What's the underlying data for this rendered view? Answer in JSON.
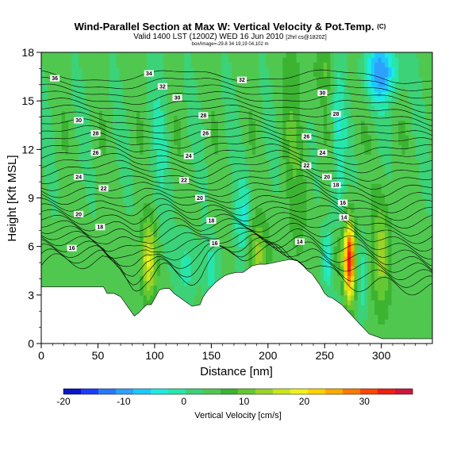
{
  "chart_data": {
    "type": "heatmap",
    "title": "Wind-Parallel Section at Max W: Vertical Velocity & Pot.Temp.",
    "title_suffix": "(C)",
    "subtitle": "Valid 1400 LST (1200Z) WED 16 Jun 2010",
    "subtitle_suffix": "[2hrl cs@1820Z]",
    "info_line": "box/Image=-29.8 34 19,19 04,102 m",
    "xlabel": "Distance [nm]",
    "ylabel": "Height [Kft MSL]",
    "xlim": [
      0,
      345
    ],
    "ylim": [
      0,
      18
    ],
    "x_ticks": [
      0,
      50,
      100,
      150,
      200,
      250,
      300
    ],
    "y_ticks": [
      0,
      3,
      6,
      9,
      12,
      15,
      18
    ],
    "grid": false,
    "colorbar": {
      "label": "Vertical Velocity [cm/s]",
      "ticks": [
        -20,
        -10,
        0,
        10,
        20,
        30
      ],
      "min": -20,
      "max": 38,
      "colors": [
        "#0a14c8",
        "#1e3cff",
        "#2878ff",
        "#2ea0ff",
        "#1ec8ff",
        "#1eebe0",
        "#28e6aa",
        "#3cd278",
        "#50c850",
        "#3cb432",
        "#64c832",
        "#9bd228",
        "#c8e61e",
        "#f0f01e",
        "#ffd200",
        "#ffaa00",
        "#ff7800",
        "#ff4600",
        "#f01e14",
        "#d2143c"
      ]
    },
    "terrain": [
      [
        0,
        3.5
      ],
      [
        55,
        3.5
      ],
      [
        58,
        3.1
      ],
      [
        64,
        3.1
      ],
      [
        67,
        3.0
      ],
      [
        70,
        2.9
      ],
      [
        73,
        2.6
      ],
      [
        76,
        2.3
      ],
      [
        79,
        2.0
      ],
      [
        82,
        1.7
      ],
      [
        86,
        1.9
      ],
      [
        90,
        2.2
      ],
      [
        93,
        2.4
      ],
      [
        97,
        2.4
      ],
      [
        101,
        2.9
      ],
      [
        104,
        3.3
      ],
      [
        108,
        3.4
      ],
      [
        113,
        3.4
      ],
      [
        117,
        3.1
      ],
      [
        121,
        2.9
      ],
      [
        125,
        2.7
      ],
      [
        129,
        2.5
      ],
      [
        133,
        2.3
      ],
      [
        140,
        2.4
      ],
      [
        143,
        2.9
      ],
      [
        147,
        3.3
      ],
      [
        150,
        3.5
      ],
      [
        154,
        3.8
      ],
      [
        158,
        4.0
      ],
      [
        162,
        4.2
      ],
      [
        166,
        4.3
      ],
      [
        172,
        4.4
      ],
      [
        178,
        4.4
      ],
      [
        182,
        4.6
      ],
      [
        186,
        4.8
      ],
      [
        192,
        4.9
      ],
      [
        198,
        4.9
      ],
      [
        205,
        5.0
      ],
      [
        212,
        5.1
      ],
      [
        220,
        5.2
      ],
      [
        226,
        5.1
      ],
      [
        231,
        4.8
      ],
      [
        235,
        4.5
      ],
      [
        239,
        4.3
      ],
      [
        242,
        4.0
      ],
      [
        246,
        3.6
      ],
      [
        250,
        3.1
      ],
      [
        253,
        2.9
      ],
      [
        257,
        2.8
      ],
      [
        261,
        2.6
      ],
      [
        265,
        2.4
      ],
      [
        269,
        2.1
      ],
      [
        273,
        1.8
      ],
      [
        277,
        1.5
      ],
      [
        281,
        1.2
      ],
      [
        285,
        0.9
      ],
      [
        289,
        0.6
      ],
      [
        293,
        0.5
      ],
      [
        297,
        0.4
      ],
      [
        301,
        0.3
      ],
      [
        345,
        0.3
      ]
    ],
    "theta_contours": [
      {
        "value": 14,
        "label_at": [
          228,
          6.3
        ]
      },
      {
        "value": 14,
        "label_at": [
          267,
          7.8
        ]
      },
      {
        "value": 16,
        "label_at": [
          27,
          5.9
        ]
      },
      {
        "value": 16,
        "label_at": [
          153,
          6.2
        ]
      },
      {
        "value": 16,
        "label_at": [
          266,
          8.7
        ]
      },
      {
        "value": 18,
        "label_at": [
          52,
          7.2
        ]
      },
      {
        "value": 18,
        "label_at": [
          150,
          7.6
        ]
      },
      {
        "value": 18,
        "label_at": [
          260,
          9.8
        ]
      },
      {
        "value": 20,
        "label_at": [
          33,
          8.0
        ]
      },
      {
        "value": 20,
        "label_at": [
          140,
          9.0
        ]
      },
      {
        "value": 20,
        "label_at": [
          252,
          10.3
        ]
      },
      {
        "value": 22,
        "label_at": [
          55,
          9.6
        ]
      },
      {
        "value": 22,
        "label_at": [
          126,
          10.1
        ]
      },
      {
        "value": 22,
        "label_at": [
          234,
          11.0
        ]
      },
      {
        "value": 24,
        "label_at": [
          33,
          10.3
        ]
      },
      {
        "value": 24,
        "label_at": [
          130,
          11.6
        ]
      },
      {
        "value": 24,
        "label_at": [
          248,
          11.8
        ]
      },
      {
        "value": 26,
        "label_at": [
          48,
          11.8
        ]
      },
      {
        "value": 26,
        "label_at": [
          145,
          13.0
        ]
      },
      {
        "value": 26,
        "label_at": [
          234,
          12.8
        ]
      },
      {
        "value": 28,
        "label_at": [
          48,
          13.0
        ]
      },
      {
        "value": 28,
        "label_at": [
          143,
          14.1
        ]
      },
      {
        "value": 28,
        "label_at": [
          260,
          14.2
        ]
      },
      {
        "value": 30,
        "label_at": [
          33,
          13.8
        ]
      },
      {
        "value": 30,
        "label_at": [
          120,
          15.2
        ]
      },
      {
        "value": 30,
        "label_at": [
          248,
          15.5
        ]
      },
      {
        "value": 32,
        "label_at": [
          107,
          15.9
        ]
      },
      {
        "value": 32,
        "label_at": [
          177,
          16.3
        ]
      },
      {
        "value": 34,
        "label_at": [
          95,
          16.7
        ]
      },
      {
        "value": 36,
        "label_at": [
          12,
          16.4
        ]
      }
    ]
  }
}
